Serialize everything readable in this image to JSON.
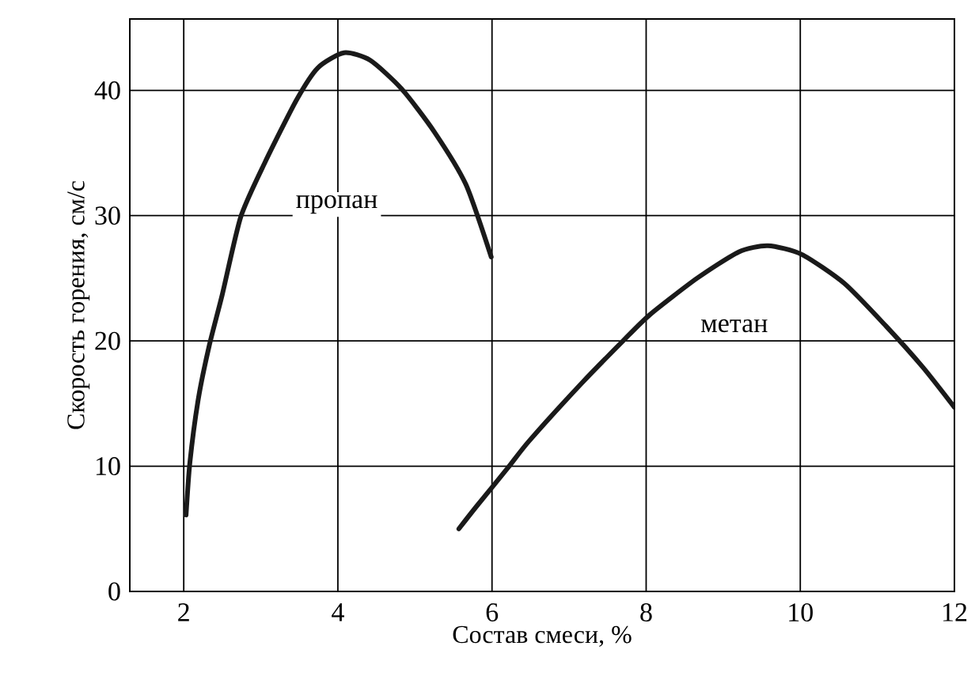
{
  "chart_data": {
    "type": "line",
    "xlabel": "Состав смеси, %",
    "ylabel": "Скорость горения, см/с",
    "xlim": [
      1.3,
      12
    ],
    "ylim": [
      0,
      45.7
    ],
    "xticks": [
      2,
      4,
      6,
      8,
      10,
      12
    ],
    "yticks": [
      {
        "value": 0,
        "label": "0"
      },
      10,
      20,
      30,
      40
    ],
    "grid": true,
    "marker": "none",
    "line_style": "solid",
    "series": [
      {
        "color": "#1a1a1a",
        "x": [
          2.03,
          2.08,
          2.19,
          2.33,
          2.5,
          2.74,
          3.05,
          3.46,
          3.74,
          4.08,
          4.42,
          4.83,
          5.25,
          5.66,
          5.99
        ],
        "values": [
          6.1,
          10.3,
          15.4,
          19.6,
          23.7,
          29.9,
          34.2,
          39.2,
          41.8,
          43.0,
          42.4,
          40.1,
          36.7,
          32.5,
          26.7
        ]
      },
      {
        "color": "#1a1a1a",
        "x": [
          5.57,
          5.8,
          6.21,
          6.48,
          7.16,
          7.7,
          8.05,
          8.66,
          9.2,
          9.58,
          10.02,
          10.57,
          11.11,
          11.59,
          12.0
        ],
        "values": [
          5.0,
          6.8,
          9.9,
          12.0,
          16.6,
          20.0,
          22.1,
          25.0,
          27.1,
          27.6,
          26.9,
          24.6,
          21.2,
          17.9,
          14.7
        ]
      }
    ],
    "annotations": [
      "пропан",
      "метан"
    ]
  }
}
